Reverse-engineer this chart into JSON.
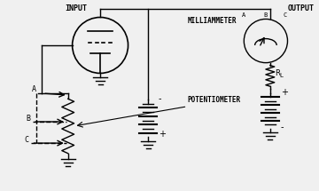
{
  "title": "",
  "bg_color": "#f0f0f0",
  "line_color": "black",
  "text_color": "black",
  "labels": {
    "input": "INPUT",
    "output": "OUTPUT",
    "milliammeter": "MILLIAMMETER",
    "potentiometer": "POTENTIOMETER",
    "RL": "R",
    "RL_sub": "L",
    "A": "A",
    "B": "B",
    "C": "C",
    "meter_A": "A",
    "meter_B": "B",
    "meter_C": "C",
    "plus1": "+",
    "minus1": "-",
    "plus2": "+",
    "minus2": "-"
  },
  "figsize": [
    3.6,
    2.15
  ],
  "dpi": 100
}
